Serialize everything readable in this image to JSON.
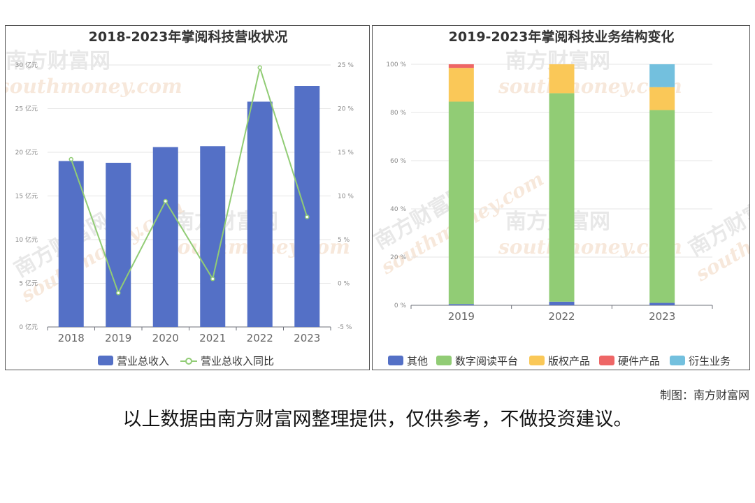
{
  "watermark": {
    "cn": "南方财富网",
    "en": "southmoney.com"
  },
  "credit": "制图：南方财富网",
  "footnote": "以上数据由南方财富网整理提供，仅供参考，不做投资建议。",
  "chart_data": [
    {
      "type": "bar",
      "title": "2018-2023年掌阅科技营收状况",
      "categories": [
        "2018",
        "2019",
        "2020",
        "2021",
        "2022",
        "2023"
      ],
      "series": [
        {
          "name": "营业总收入",
          "type": "bar",
          "axis": "left",
          "color": "#5470c6",
          "values": [
            19.0,
            18.8,
            20.6,
            20.7,
            25.8,
            27.6
          ]
        },
        {
          "name": "营业总收入同比",
          "type": "line",
          "axis": "right",
          "color": "#91cc75",
          "values": [
            14.2,
            -1.1,
            9.4,
            0.5,
            24.7,
            7.6
          ]
        }
      ],
      "yleft": {
        "min": 0,
        "max": 30,
        "step": 5,
        "unit": "亿元",
        "ticks": [
          "0 亿元",
          "5 亿元",
          "10 亿元",
          "15 亿元",
          "20 亿元",
          "25 亿元",
          "30 亿元"
        ]
      },
      "yright": {
        "min": -5,
        "max": 25,
        "step": 5,
        "unit": "%",
        "ticks": [
          "-5 %",
          "0 %",
          "5 %",
          "10 %",
          "15 %",
          "20 %",
          "25 %"
        ]
      },
      "grid": true,
      "legend": "bottom"
    },
    {
      "type": "bar",
      "stacked": true,
      "title": "2019-2023年掌阅科技业务结构变化",
      "categories": [
        "2019",
        "2022",
        "2023"
      ],
      "series": [
        {
          "name": "其他",
          "color": "#5470c6",
          "values": [
            0.5,
            1.5,
            1.0
          ]
        },
        {
          "name": "数字阅读平台",
          "color": "#91cc75",
          "values": [
            84.0,
            86.5,
            80.0
          ]
        },
        {
          "name": "版权产品",
          "color": "#fac858",
          "values": [
            14.0,
            12.0,
            9.5
          ]
        },
        {
          "name": "硬件产品",
          "color": "#ee6666",
          "values": [
            1.5,
            0,
            0
          ]
        },
        {
          "name": "衍生业务",
          "color": "#73c0de",
          "values": [
            0,
            0,
            9.5
          ]
        }
      ],
      "y": {
        "min": 0,
        "max": 100,
        "step": 20,
        "unit": "%",
        "ticks": [
          "0 %",
          "20 %",
          "40 %",
          "60 %",
          "80 %",
          "100 %"
        ]
      },
      "grid": true,
      "legend": "bottom"
    }
  ]
}
